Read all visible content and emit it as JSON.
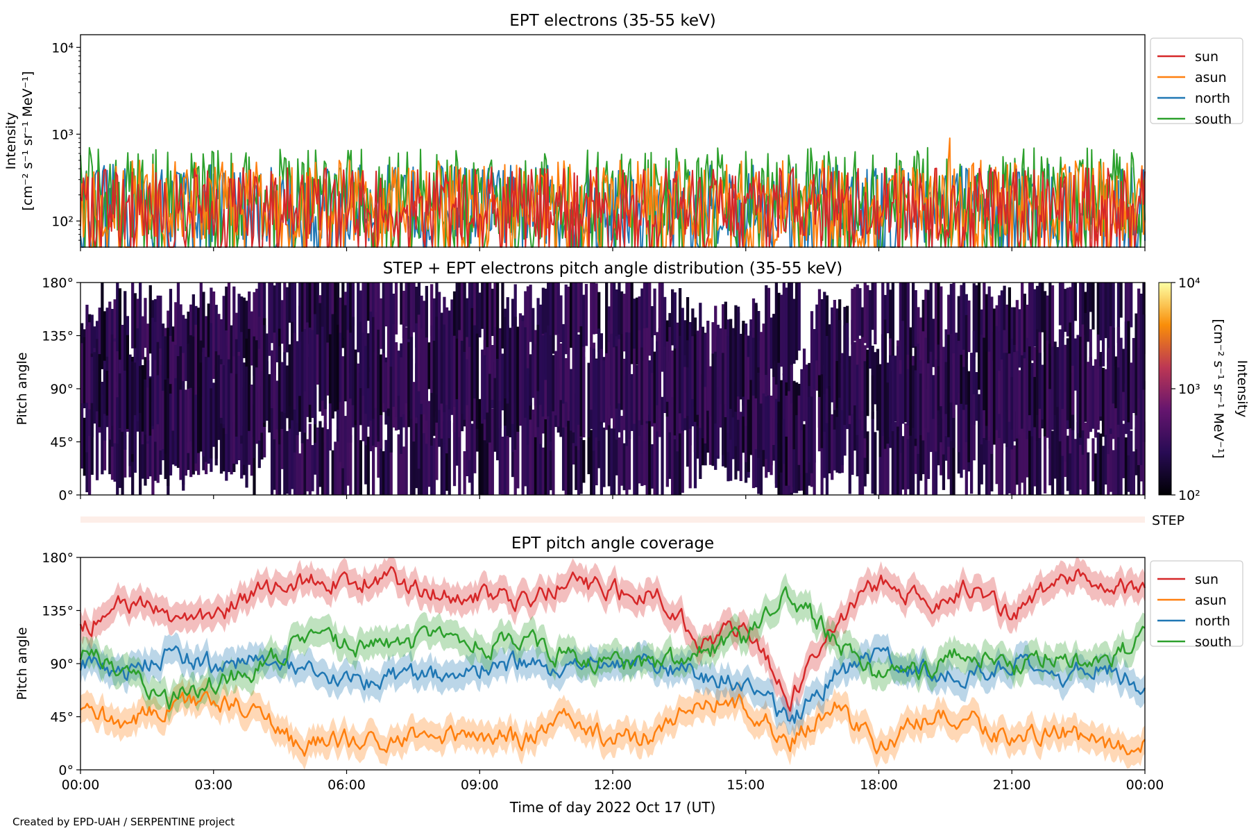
{
  "footer": {
    "credit": "Created by EPD-UAH / SERPENTINE project"
  },
  "colors": {
    "sun": "#d62728",
    "asun": "#ff7f0e",
    "north": "#1f77b4",
    "south": "#2ca02c",
    "step_band": "#fdeee8"
  },
  "chart_data": [
    {
      "type": "line",
      "title": "EPT electrons (35-55 keV)",
      "ylabel_line1": "Intensity",
      "ylabel_line2": "[cm⁻² s⁻¹ sr⁻¹ MeV⁻¹]",
      "yscale": "log",
      "ylim": [
        50,
        14000
      ],
      "yticks": [
        {
          "value": 100,
          "label": "10²"
        },
        {
          "value": 1000,
          "label": "10³"
        },
        {
          "value": 10000,
          "label": "10⁴"
        }
      ],
      "xlim_hours": [
        0,
        24
      ],
      "series": [
        {
          "name": "sun",
          "color": "#d62728",
          "typical_range": [
            60,
            420
          ]
        },
        {
          "name": "asun",
          "color": "#ff7f0e",
          "typical_range": [
            60,
            500
          ],
          "max": 900
        },
        {
          "name": "north",
          "color": "#1f77b4",
          "typical_range": [
            55,
            450
          ]
        },
        {
          "name": "south",
          "color": "#2ca02c",
          "typical_range": [
            60,
            700
          ]
        }
      ],
      "legend": "outside-right-top"
    },
    {
      "type": "heatmap",
      "title": "STEP + EPT electrons pitch angle distribution (35-55 keV)",
      "ylabel": "Pitch angle",
      "ylim": [
        0,
        180
      ],
      "yticks": [
        "0°",
        "45°",
        "90°",
        "135°",
        "180°"
      ],
      "xlim_hours": [
        0,
        24
      ],
      "colorbar": {
        "label_line1": "Intensity",
        "label_line2": "[cm⁻² s⁻¹ sr⁻¹ MeV⁻¹]",
        "scale": "log",
        "range": [
          100,
          10000
        ],
        "ticks": [
          "10²",
          "10³",
          "10⁴"
        ],
        "colormap": "inferno"
      },
      "step_label": "STEP",
      "typical_intensity": 200
    },
    {
      "type": "line",
      "title": "EPT pitch angle coverage",
      "ylabel": "Pitch angle",
      "ylim": [
        0,
        180
      ],
      "yticks": [
        "0°",
        "45°",
        "90°",
        "135°",
        "180°"
      ],
      "xlabel": "Time of day 2022 Oct 17 (UT)",
      "xticks": [
        "00:00",
        "03:00",
        "06:00",
        "09:00",
        "12:00",
        "15:00",
        "18:00",
        "21:00",
        "00:00"
      ],
      "x_hours": [
        0,
        1,
        2,
        3,
        4,
        5,
        6,
        7,
        8,
        9,
        10,
        11,
        12,
        13,
        14,
        15,
        16,
        17,
        18,
        19,
        20,
        21,
        22,
        23,
        24
      ],
      "series": [
        {
          "name": "sun",
          "color": "#d62728",
          "values": [
            120,
            140,
            130,
            130,
            150,
            160,
            160,
            160,
            150,
            150,
            140,
            160,
            150,
            150,
            110,
            120,
            60,
            125,
            160,
            140,
            155,
            130,
            160,
            165,
            150
          ]
        },
        {
          "name": "asun",
          "color": "#ff7f0e",
          "values": [
            50,
            40,
            55,
            60,
            50,
            20,
            25,
            25,
            30,
            30,
            25,
            45,
            25,
            30,
            60,
            55,
            25,
            55,
            20,
            40,
            45,
            25,
            35,
            20,
            25
          ]
        },
        {
          "name": "north",
          "color": "#1f77b4",
          "values": [
            90,
            80,
            100,
            90,
            95,
            80,
            75,
            80,
            80,
            85,
            90,
            80,
            95,
            90,
            80,
            75,
            40,
            80,
            95,
            85,
            80,
            90,
            75,
            90,
            70
          ]
        },
        {
          "name": "south",
          "color": "#2ca02c",
          "values": [
            100,
            85,
            60,
            75,
            85,
            110,
            105,
            105,
            110,
            105,
            110,
            95,
            90,
            90,
            100,
            110,
            150,
            110,
            80,
            85,
            100,
            85,
            100,
            90,
            110
          ]
        }
      ],
      "band_halfwidth": 12,
      "legend": "outside-right-top"
    }
  ]
}
